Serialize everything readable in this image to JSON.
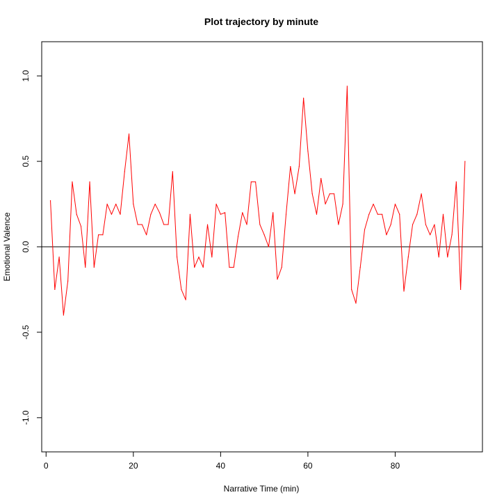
{
  "chart_data": {
    "type": "line",
    "title": "Plot trajectory by minute",
    "xlabel": "Narrative Time (min)",
    "ylabel": "Emotional Valence",
    "xlim": [
      -1,
      100
    ],
    "ylim": [
      -1.2,
      1.2
    ],
    "x_ticks": [
      0,
      20,
      40,
      60,
      80
    ],
    "y_ticks": [
      -1.0,
      -0.5,
      0.0,
      0.5,
      1.0
    ],
    "x_tick_labels": [
      "0",
      "20",
      "40",
      "60",
      "80"
    ],
    "y_tick_labels": [
      "-1.0",
      "-0.5",
      "0.0",
      "0.5",
      "1.0"
    ],
    "grid": false,
    "reference_line": {
      "y": 0,
      "color": "#000000"
    },
    "series": [
      {
        "color": "#ff0000",
        "x": [
          1,
          2,
          3,
          4,
          5,
          6,
          7,
          8,
          9,
          10,
          11,
          12,
          13,
          14,
          15,
          16,
          17,
          18,
          19,
          20,
          21,
          22,
          23,
          24,
          25,
          26,
          27,
          28,
          29,
          30,
          31,
          32,
          33,
          34,
          35,
          36,
          37,
          38,
          39,
          40,
          41,
          42,
          43,
          44,
          45,
          46,
          47,
          48,
          49,
          50,
          51,
          52,
          53,
          54,
          55,
          56,
          57,
          58,
          59,
          60,
          61,
          62,
          63,
          64,
          65,
          66,
          67,
          68,
          69,
          70,
          71,
          72,
          73,
          74,
          75,
          76,
          77,
          78,
          79,
          80,
          81,
          82,
          83,
          84,
          85,
          86,
          87,
          88,
          89,
          90,
          91,
          92,
          93,
          94,
          95,
          96
        ],
        "values": [
          0.27,
          -0.25,
          -0.06,
          -0.4,
          -0.2,
          0.38,
          0.19,
          0.12,
          -0.12,
          0.38,
          -0.12,
          0.07,
          0.07,
          0.25,
          0.19,
          0.25,
          0.19,
          0.44,
          0.66,
          0.25,
          0.13,
          0.13,
          0.07,
          0.19,
          0.25,
          0.2,
          0.13,
          0.13,
          0.44,
          -0.06,
          -0.25,
          -0.31,
          0.19,
          -0.12,
          -0.06,
          -0.12,
          0.13,
          -0.06,
          0.25,
          0.19,
          0.2,
          -0.12,
          -0.12,
          0.06,
          0.2,
          0.13,
          0.38,
          0.38,
          0.13,
          0.07,
          0.0,
          0.2,
          -0.19,
          -0.12,
          0.19,
          0.47,
          0.31,
          0.47,
          0.87,
          0.56,
          0.31,
          0.19,
          0.4,
          0.25,
          0.31,
          0.31,
          0.13,
          0.25,
          0.94,
          -0.25,
          -0.33,
          -0.12,
          0.1,
          0.19,
          0.25,
          0.19,
          0.19,
          0.07,
          0.13,
          0.25,
          0.19,
          -0.26,
          -0.06,
          0.13,
          0.19,
          0.31,
          0.13,
          0.07,
          0.13,
          -0.06,
          0.19,
          -0.06,
          0.07,
          0.38,
          -0.25,
          0.5
        ]
      }
    ]
  }
}
